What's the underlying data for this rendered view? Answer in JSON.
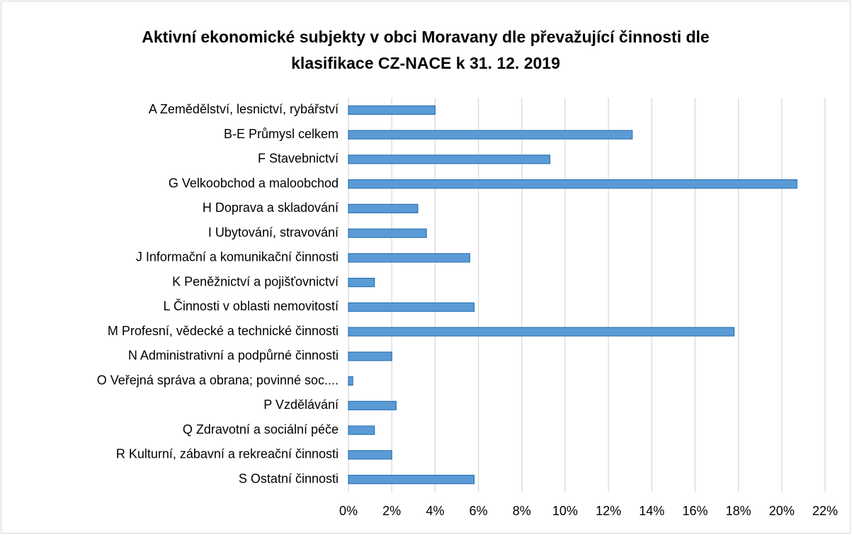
{
  "chart_data": {
    "type": "bar",
    "orientation": "horizontal",
    "title": "Aktivní ekonomické subjekty v obci Moravany dle převažující činnosti dle klasifikace CZ-NACE k 31. 12. 2019",
    "categories": [
      "A Zemědělství, lesnictví, rybářství",
      "B-E Průmysl celkem",
      "F Stavebnictví",
      "G Velkoobchod a maloobchod",
      "H Doprava a skladování",
      "I Ubytování, stravování ",
      "J Informační a komunikační činnosti",
      "K Peněžnictví a pojišťovnictví",
      "L Činnosti v oblasti nemovitostí",
      "M Profesní, vědecké a technické činnosti",
      "N Administrativní a podpůrné činnosti",
      "O Veřejná správa a obrana; povinné soc....",
      "P Vzdělávání",
      "Q Zdravotní a sociální péče",
      "R Kulturní, zábavní a rekreační činnosti",
      "S Ostatní činnosti"
    ],
    "values": [
      4.0,
      13.1,
      9.3,
      20.7,
      3.2,
      3.6,
      5.6,
      1.2,
      5.8,
      17.8,
      2.0,
      0.2,
      2.2,
      1.2,
      2.0,
      5.8
    ],
    "color": "#5b9bd5",
    "xlim": [
      0,
      22
    ],
    "xticks": [
      {
        "value": 0,
        "label": "0%"
      },
      {
        "value": 2,
        "label": "2%"
      },
      {
        "value": 4,
        "label": "4%"
      },
      {
        "value": 6,
        "label": "6%"
      },
      {
        "value": 8,
        "label": "8%"
      },
      {
        "value": 10,
        "label": "10%"
      },
      {
        "value": 12,
        "label": "12%"
      },
      {
        "value": 14,
        "label": "14%"
      },
      {
        "value": 16,
        "label": "16%"
      },
      {
        "value": 18,
        "label": "18%"
      },
      {
        "value": 20,
        "label": "20%"
      },
      {
        "value": 22,
        "label": "22%"
      }
    ],
    "grid": true
  }
}
